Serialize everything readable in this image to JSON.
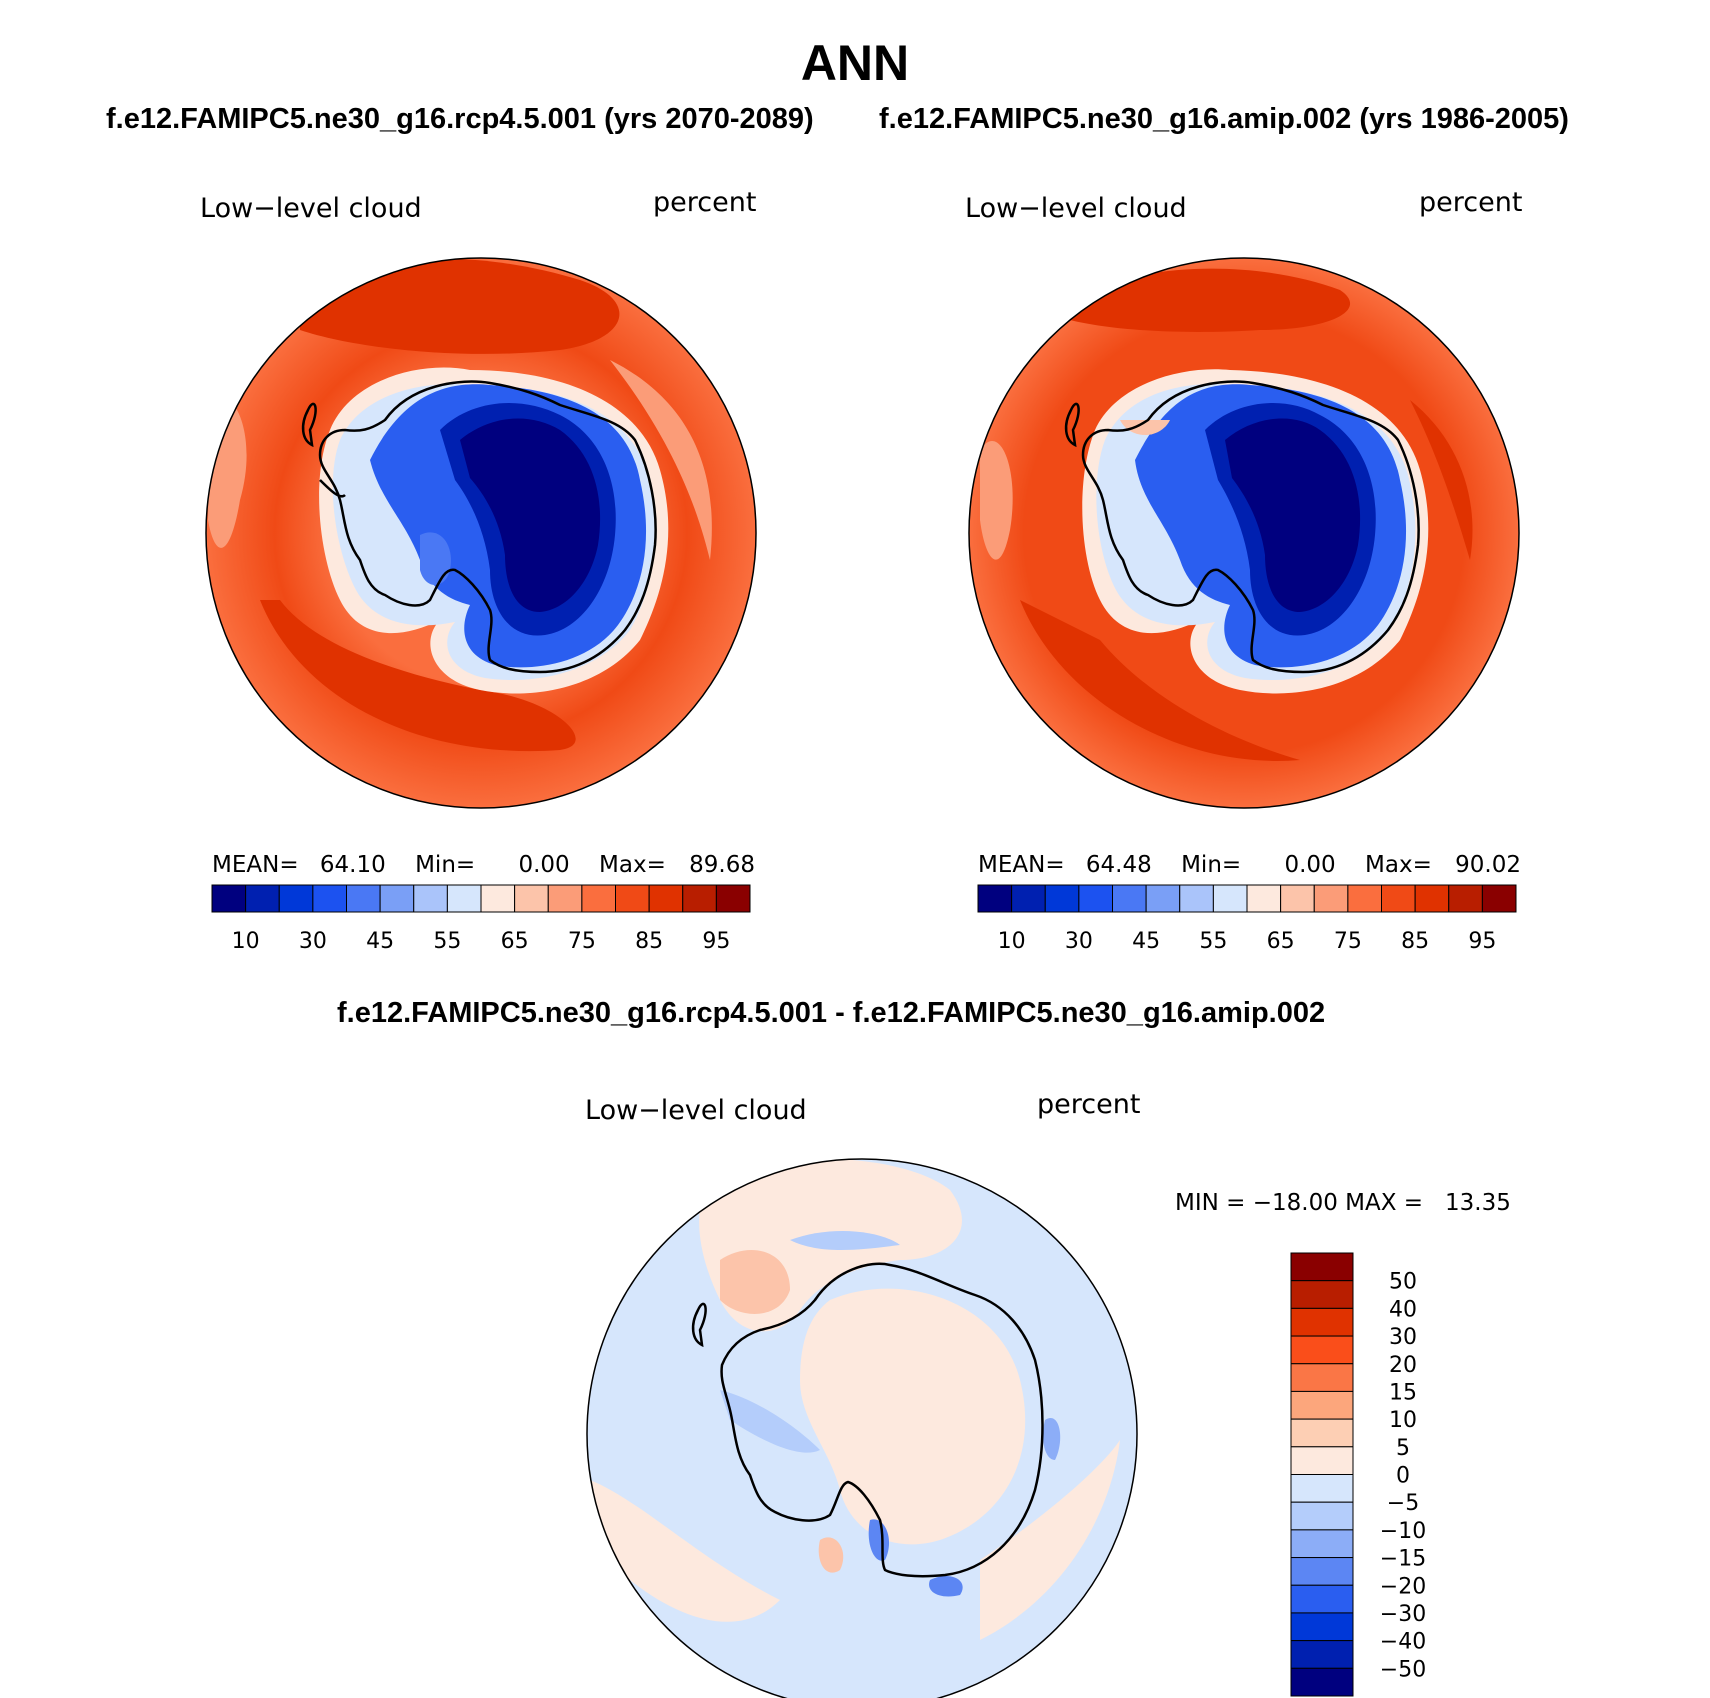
{
  "figure": {
    "title": "ANN",
    "case_a_title": "f.e12.FAMIPC5.ne30_g16.rcp4.5.001 (yrs 2070-2089)",
    "case_b_title": "f.e12.FAMIPC5.ne30_g16.amip.002 (yrs 1986-2005)",
    "difference_title": "f.e12.FAMIPC5.ne30_g16.rcp4.5.001 - f.e12.FAMIPC5.ne30_g16.amip.002"
  },
  "panels": {
    "case_a": {
      "variable": "Low−level cloud",
      "units": "percent",
      "mean_label": "MEAN=",
      "mean": "64.10",
      "min_label": "Min=",
      "min": "0.00",
      "max_label": "Max=",
      "max": "89.68",
      "colorbar_ticks": [
        "10",
        "30",
        "45",
        "55",
        "65",
        "75",
        "85",
        "95"
      ]
    },
    "case_b": {
      "variable": "Low−level cloud",
      "units": "percent",
      "mean_label": "MEAN=",
      "mean": "64.48",
      "min_label": "Min=",
      "min": "0.00",
      "max_label": "Max=",
      "max": "90.02",
      "colorbar_ticks": [
        "10",
        "30",
        "45",
        "55",
        "65",
        "75",
        "85",
        "95"
      ]
    },
    "difference": {
      "variable": "Low−level cloud",
      "units": "percent",
      "minmax_text": "MIN = −18.00 MAX =   13.35",
      "colorbar_ticks": [
        "50",
        "40",
        "30",
        "20",
        "15",
        "10",
        "5",
        "0",
        "−5",
        "−10",
        "−15",
        "−20",
        "−30",
        "−40",
        "−50"
      ]
    }
  },
  "colors": {
    "abs_scale": [
      "#00007f",
      "#0020b0",
      "#0038d8",
      "#1c52f0",
      "#4a78f4",
      "#7a9ff6",
      "#aac4fa",
      "#d6e6fc",
      "#fde9de",
      "#fcc4aa",
      "#fb9c78",
      "#fa6e3e",
      "#f04a16",
      "#e03200",
      "#b81e00",
      "#8a0000"
    ],
    "diff_scale": [
      "#8a0000",
      "#b81e00",
      "#e03200",
      "#fa4e1a",
      "#fa7646",
      "#fca67c",
      "#fdcfb4",
      "#fde9de",
      "#d6e6fc",
      "#b4cdfb",
      "#8cadf7",
      "#5c86f3",
      "#2a5ef0",
      "#0038d8",
      "#0020b0",
      "#00007f"
    ],
    "coastline": "#000000"
  }
}
